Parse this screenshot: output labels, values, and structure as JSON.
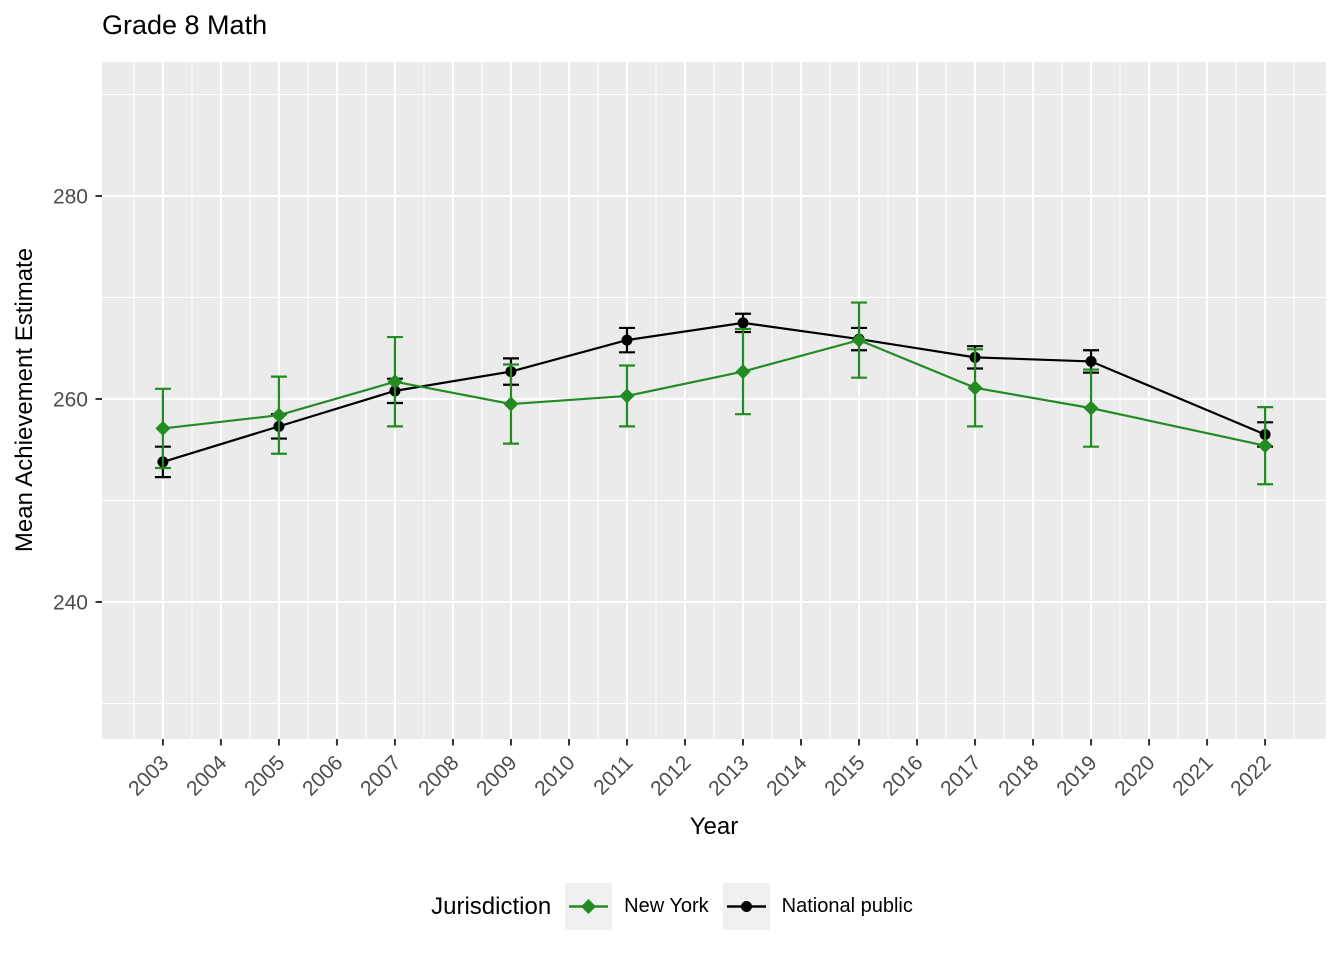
{
  "chart_data": {
    "type": "line",
    "title": "Grade 8 Math",
    "xlabel": "Year",
    "ylabel": "Mean Achievement Estimate",
    "legend_title": "Jurisdiction",
    "legend_position": "bottom",
    "x": [
      2003,
      2005,
      2007,
      2009,
      2011,
      2013,
      2015,
      2017,
      2019,
      2022
    ],
    "series": [
      {
        "name": "New York",
        "color": "#228B22",
        "marker": "diamond",
        "values": [
          257.1,
          258.4,
          261.7,
          259.5,
          260.3,
          262.7,
          265.8,
          261.1,
          259.1,
          255.4
        ],
        "error": [
          3.9,
          3.8,
          4.4,
          3.9,
          3.0,
          4.2,
          3.7,
          3.8,
          3.8,
          3.8
        ]
      },
      {
        "name": "National public",
        "color": "#000000",
        "marker": "circle",
        "values": [
          253.8,
          257.3,
          260.8,
          262.7,
          265.8,
          267.5,
          265.9,
          264.1,
          263.7,
          256.5
        ],
        "error": [
          1.5,
          1.2,
          1.2,
          1.3,
          1.2,
          0.9,
          1.1,
          1.1,
          1.1,
          1.2
        ]
      }
    ],
    "x_ticks": [
      2003,
      2004,
      2005,
      2006,
      2007,
      2008,
      2009,
      2010,
      2011,
      2012,
      2013,
      2014,
      2015,
      2016,
      2017,
      2018,
      2019,
      2020,
      2021,
      2022
    ],
    "y_ticks": [
      240,
      260,
      280
    ],
    "y_minor_ticks": [
      230,
      250,
      270,
      290
    ],
    "xlim": [
      2001.95,
      2023.05
    ],
    "ylim": [
      226.5,
      293.2
    ],
    "grid": true,
    "panel_background": "#EBEBEB",
    "grid_color": "#FFFFFF",
    "tick_color": "#333333",
    "tick_label_color": "#4D4D4D",
    "axis_title_color": "#000000",
    "legend_key_background": "#F0F0F0"
  }
}
